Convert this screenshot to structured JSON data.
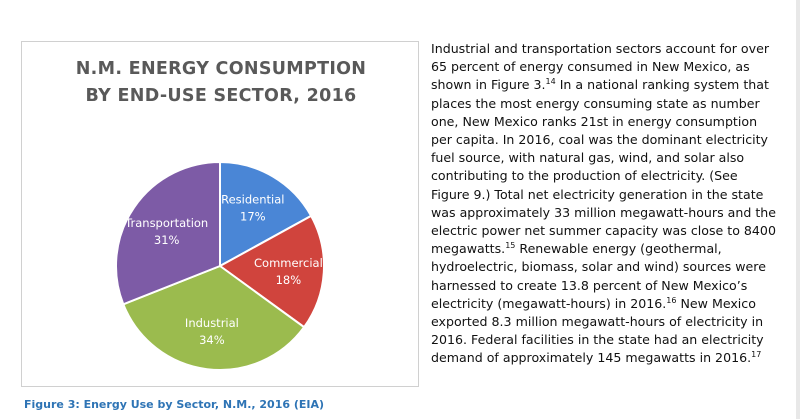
{
  "chart_data": {
    "type": "pie",
    "title": "N.M. ENERGY CONSUMPTION BY END-USE SECTOR, 2016",
    "title_lines": [
      "N.M. ENERGY CONSUMPTION",
      "BY END-USE SECTOR, 2016"
    ],
    "categories": [
      "Residential",
      "Commercial",
      "Industrial",
      "Transportation"
    ],
    "values": [
      17,
      18,
      34,
      31
    ],
    "value_labels": [
      "17%",
      "18%",
      "34%",
      "31%"
    ],
    "colors": [
      "#4a86d6",
      "#d0443d",
      "#9bbb4e",
      "#7d5ba6"
    ],
    "unit": "%",
    "legend": "none (labels on slices)"
  },
  "caption": "Figure 3: Energy Use by Sector, N.M., 2016 (EIA)",
  "text": {
    "l1": "Industrial and transportation sectors account for over",
    "l2": "65 percent of energy consumed in New Mexico, as",
    "l3a": "shown in Figure 3.",
    "l3sup": "14",
    "l3b": " In a national ranking system that",
    "l4": "places the most energy consuming state as number",
    "l5": "one, New Mexico ranks 21st in energy consumption",
    "l6": "per capita. In 2016, coal was the dominant electricity",
    "l7": "fuel source, with natural gas, wind, and solar also",
    "l8": "contributing to the production of electricity. (See",
    "l9": "Figure 9.) Total net electricity generation in the state",
    "l10": "was approximately 33 million megawatt-hours and the",
    "l11": "electric power net summer capacity was close to 8400",
    "l12a": "megawatts.",
    "l12sup": "15",
    "l12b": " Renewable energy (geothermal,",
    "l13": "hydroelectric, biomass, solar and wind) sources were",
    "l14": "harnessed to create 13.8 percent of New Mexico’s",
    "l15a": "electricity (megawatt-hours) in 2016.",
    "l15sup": "16",
    "l15b": " New Mexico",
    "l16": "exported 8.3 million megawatt-hours of electricity in",
    "l17": "2016. Federal facilities in the state had an electricity",
    "l18a": "demand of approximately 145 megawatts in 2016.",
    "l18sup": "17"
  }
}
